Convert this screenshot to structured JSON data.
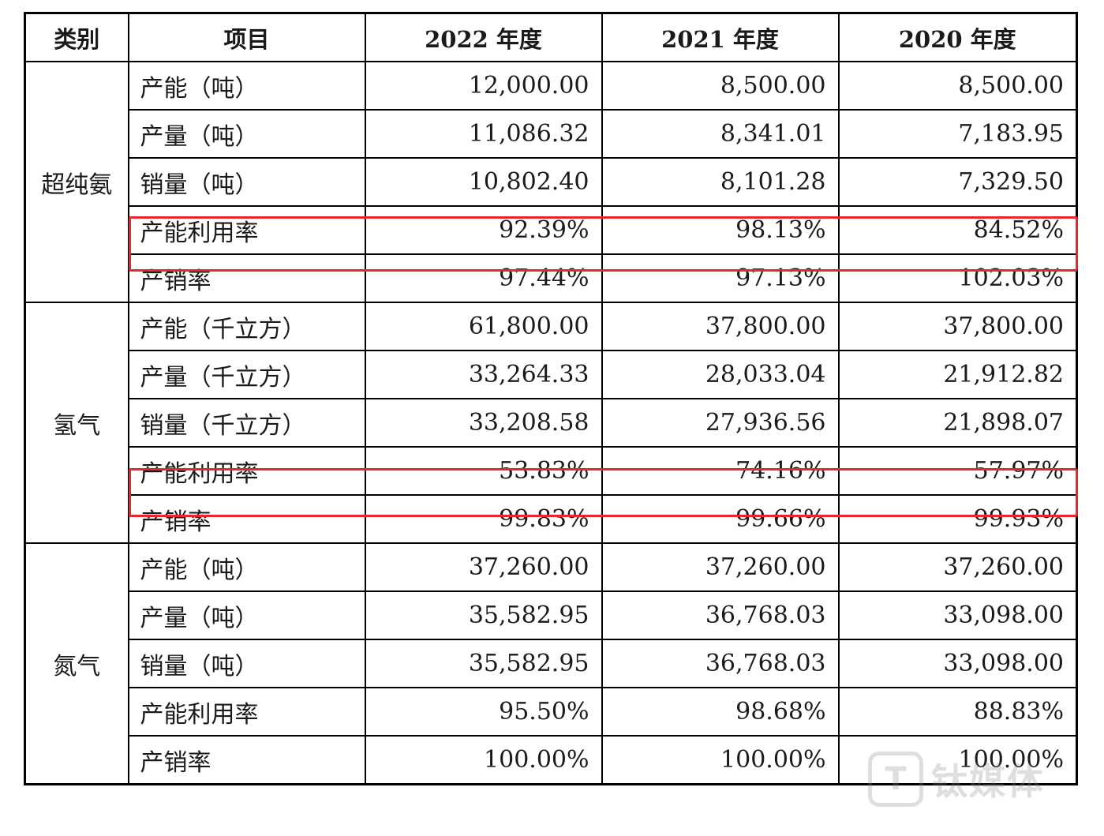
{
  "table": {
    "headers": [
      "类别",
      "项目",
      "2022 年度",
      "2021 年度",
      "2020 年度"
    ],
    "groups": [
      {
        "category": "超纯氨",
        "rows": [
          {
            "item": "产能（吨）",
            "y2022": "12,000.00",
            "y2021": "8,500.00",
            "y2020": "8,500.00"
          },
          {
            "item": "产量（吨）",
            "y2022": "11,086.32",
            "y2021": "8,341.01",
            "y2020": "7,183.95"
          },
          {
            "item": "销量（吨）",
            "y2022": "10,802.40",
            "y2021": "8,101.28",
            "y2020": "7,329.50"
          },
          {
            "item": "产能利用率",
            "y2022": "92.39%",
            "y2021": "98.13%",
            "y2020": "84.52%"
          },
          {
            "item": "产销率",
            "y2022": "97.44%",
            "y2021": "97.13%",
            "y2020": "102.03%"
          }
        ]
      },
      {
        "category": "氢气",
        "rows": [
          {
            "item": "产能（千立方）",
            "y2022": "61,800.00",
            "y2021": "37,800.00",
            "y2020": "37,800.00"
          },
          {
            "item": "产量（千立方）",
            "y2022": "33,264.33",
            "y2021": "28,033.04",
            "y2020": "21,912.82"
          },
          {
            "item": "销量（千立方）",
            "y2022": "33,208.58",
            "y2021": "27,936.56",
            "y2020": "21,898.07"
          },
          {
            "item": "产能利用率",
            "y2022": "53.83%",
            "y2021": "74.16%",
            "y2020": "57.97%"
          },
          {
            "item": "产销率",
            "y2022": "99.83%",
            "y2021": "99.66%",
            "y2020": "99.93%"
          }
        ]
      },
      {
        "category": "氮气",
        "rows": [
          {
            "item": "产能（吨）",
            "y2022": "37,260.00",
            "y2021": "37,260.00",
            "y2020": "37,260.00"
          },
          {
            "item": "产量（吨）",
            "y2022": "35,582.95",
            "y2021": "36,768.03",
            "y2020": "33,098.00"
          },
          {
            "item": "销量（吨）",
            "y2022": "35,582.95",
            "y2021": "36,768.03",
            "y2020": "33,098.00"
          },
          {
            "item": "产能利用率",
            "y2022": "95.50%",
            "y2021": "98.68%",
            "y2020": "88.83%"
          },
          {
            "item": "产销率",
            "y2022": "100.00%",
            "y2021": "100.00%",
            "y2020": "100.00%"
          }
        ]
      }
    ]
  },
  "highlight_color": "#e8262d",
  "watermark": {
    "logo_text": "T",
    "text": "钛媒体"
  }
}
